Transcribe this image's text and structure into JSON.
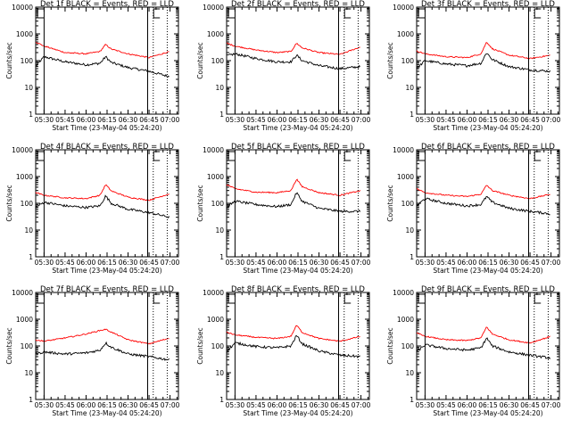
{
  "chart_data": [
    {
      "type": "line",
      "title": "Det 1f BLACK = Events, RED = LLD",
      "xlabel": "Start Time (23-May-04 05:24:20)",
      "ylabel": "Counts/sec",
      "y_scale": "log",
      "ylim": [
        1,
        10000
      ],
      "xtick_labels": [
        "05:30",
        "05:45",
        "06:00",
        "06:15",
        "06:30",
        "06:45",
        "07:00"
      ],
      "ytick_labels": [
        "1",
        "10",
        "100",
        "1000",
        "10000"
      ],
      "markers": {
        "solid": [
          "05:30",
          "06:44"
        ],
        "dotted": [
          "06:48",
          "06:58"
        ],
        "brackets": [
          "05:24",
          "06:47"
        ]
      },
      "series": [
        {
          "color": "#000000",
          "x": [
            "05:24",
            "05:30",
            "05:45",
            "06:00",
            "06:10",
            "06:14",
            "06:18",
            "06:30",
            "06:45",
            "07:00"
          ],
          "y": [
            60,
            140,
            90,
            70,
            80,
            140,
            85,
            55,
            40,
            25
          ]
        },
        {
          "color": "#ff0000",
          "x": [
            "05:24",
            "05:30",
            "05:45",
            "06:00",
            "06:10",
            "06:14",
            "06:18",
            "06:30",
            "06:45",
            "07:00"
          ],
          "y": [
            500,
            350,
            200,
            180,
            220,
            400,
            270,
            180,
            130,
            220
          ]
        }
      ]
    },
    {
      "type": "line",
      "title": "Det 2f BLACK = Events, RED = LLD",
      "xlabel": "Start Time (23-May-04 05:24:20)",
      "ylabel": "Counts/sec",
      "y_scale": "log",
      "ylim": [
        1,
        10000
      ],
      "xtick_labels": [
        "05:30",
        "05:45",
        "06:00",
        "06:15",
        "06:30",
        "06:45",
        "07:00"
      ],
      "ytick_labels": [
        "1",
        "10",
        "100",
        "1000",
        "10000"
      ],
      "markers": {
        "solid": [
          "05:30",
          "06:44"
        ],
        "dotted": [
          "06:48",
          "06:58"
        ],
        "brackets": [
          "05:24",
          "06:47"
        ]
      },
      "series": [
        {
          "color": "#000000",
          "x": [
            "05:24",
            "05:30",
            "05:45",
            "06:00",
            "06:10",
            "06:14",
            "06:18",
            "06:30",
            "06:45",
            "07:00"
          ],
          "y": [
            150,
            180,
            120,
            90,
            90,
            160,
            100,
            65,
            50,
            60
          ]
        },
        {
          "color": "#ff0000",
          "x": [
            "05:24",
            "05:30",
            "05:45",
            "06:00",
            "06:10",
            "06:14",
            "06:18",
            "06:30",
            "06:45",
            "07:00"
          ],
          "y": [
            450,
            350,
            250,
            200,
            220,
            450,
            300,
            200,
            170,
            330
          ]
        }
      ]
    },
    {
      "type": "line",
      "title": "Det 3f BLACK = Events, RED = LLD",
      "xlabel": "Start Time (23-May-04 05:24:20)",
      "ylabel": "Counts/sec",
      "y_scale": "log",
      "ylim": [
        1,
        10000
      ],
      "xtick_labels": [
        "05:30",
        "05:45",
        "06:00",
        "06:15",
        "06:30",
        "06:45",
        "07:00"
      ],
      "ytick_labels": [
        "1",
        "10",
        "100",
        "1000",
        "10000"
      ],
      "markers": {
        "solid": [
          "05:30",
          "06:44"
        ],
        "dotted": [
          "06:48",
          "06:58"
        ],
        "brackets": [
          "05:24",
          "06:47"
        ]
      },
      "series": [
        {
          "color": "#000000",
          "x": [
            "05:24",
            "05:30",
            "05:45",
            "06:00",
            "06:10",
            "06:14",
            "06:18",
            "06:30",
            "06:45",
            "07:00"
          ],
          "y": [
            50,
            100,
            75,
            65,
            80,
            200,
            110,
            60,
            45,
            40
          ]
        },
        {
          "color": "#ff0000",
          "x": [
            "05:24",
            "05:30",
            "05:45",
            "06:00",
            "06:10",
            "06:14",
            "06:18",
            "06:30",
            "06:45",
            "07:00"
          ],
          "y": [
            230,
            180,
            140,
            130,
            180,
            500,
            280,
            160,
            120,
            160
          ]
        }
      ]
    },
    {
      "type": "line",
      "title": "Det 4f BLACK = Events, RED = LLD",
      "xlabel": "Start Time (23-May-04 05:24:20)",
      "ylabel": "Counts/sec",
      "y_scale": "log",
      "ylim": [
        1,
        10000
      ],
      "xtick_labels": [
        "05:30",
        "05:45",
        "06:00",
        "06:15",
        "06:30",
        "06:45",
        "07:00"
      ],
      "ytick_labels": [
        "1",
        "10",
        "100",
        "1000",
        "10000"
      ],
      "markers": {
        "solid": [
          "05:30",
          "06:44"
        ],
        "dotted": [
          "06:48",
          "06:58"
        ],
        "brackets": [
          "05:24",
          "06:47"
        ]
      },
      "series": [
        {
          "color": "#000000",
          "x": [
            "05:24",
            "05:30",
            "05:45",
            "06:00",
            "06:10",
            "06:14",
            "06:18",
            "06:30",
            "06:45",
            "07:00"
          ],
          "y": [
            70,
            110,
            80,
            70,
            80,
            190,
            100,
            60,
            45,
            30
          ]
        },
        {
          "color": "#ff0000",
          "x": [
            "05:24",
            "05:30",
            "05:45",
            "06:00",
            "06:10",
            "06:14",
            "06:18",
            "06:30",
            "06:45",
            "07:00"
          ],
          "y": [
            250,
            200,
            160,
            150,
            200,
            500,
            290,
            170,
            130,
            230
          ]
        }
      ]
    },
    {
      "type": "line",
      "title": "Det 5f BLACK = Events, RED = LLD",
      "xlabel": "Start Time (23-May-04 05:24:20)",
      "ylabel": "Counts/sec",
      "y_scale": "log",
      "ylim": [
        1,
        10000
      ],
      "xtick_labels": [
        "05:30",
        "05:45",
        "06:00",
        "06:15",
        "06:30",
        "06:45",
        "07:00"
      ],
      "ytick_labels": [
        "1",
        "10",
        "100",
        "1000",
        "10000"
      ],
      "markers": {
        "solid": [
          "05:30",
          "06:44"
        ],
        "dotted": [
          "06:48",
          "06:58"
        ],
        "brackets": [
          "05:24",
          "06:47"
        ]
      },
      "series": [
        {
          "color": "#000000",
          "x": [
            "05:24",
            "05:30",
            "05:45",
            "06:00",
            "06:10",
            "06:14",
            "06:18",
            "06:30",
            "06:45",
            "07:00"
          ],
          "y": [
            70,
            120,
            90,
            75,
            90,
            250,
            120,
            65,
            50,
            50
          ]
        },
        {
          "color": "#ff0000",
          "x": [
            "05:24",
            "05:30",
            "05:45",
            "06:00",
            "06:10",
            "06:14",
            "06:18",
            "06:30",
            "06:45",
            "07:00"
          ],
          "y": [
            500,
            350,
            260,
            250,
            300,
            800,
            420,
            250,
            200,
            300
          ]
        }
      ]
    },
    {
      "type": "line",
      "title": "Det 6f BLACK = Events, RED = LLD",
      "xlabel": "Start Time (23-May-04 05:24:20)",
      "ylabel": "Counts/sec",
      "y_scale": "log",
      "ylim": [
        1,
        10000
      ],
      "xtick_labels": [
        "05:30",
        "05:45",
        "06:00",
        "06:15",
        "06:30",
        "06:45",
        "07:00"
      ],
      "ytick_labels": [
        "1",
        "10",
        "100",
        "1000",
        "10000"
      ],
      "markers": {
        "solid": [
          "05:30",
          "06:44"
        ],
        "dotted": [
          "06:48",
          "06:58"
        ],
        "brackets": [
          "05:24",
          "06:47"
        ]
      },
      "series": [
        {
          "color": "#000000",
          "x": [
            "05:24",
            "05:30",
            "05:45",
            "06:00",
            "06:10",
            "06:14",
            "06:18",
            "06:30",
            "06:45",
            "07:00"
          ],
          "y": [
            80,
            150,
            100,
            80,
            90,
            180,
            110,
            65,
            50,
            40
          ]
        },
        {
          "color": "#ff0000",
          "x": [
            "05:24",
            "05:30",
            "05:45",
            "06:00",
            "06:10",
            "06:14",
            "06:18",
            "06:30",
            "06:45",
            "07:00"
          ],
          "y": [
            350,
            250,
            200,
            180,
            220,
            480,
            300,
            200,
            150,
            220
          ]
        }
      ]
    },
    {
      "type": "line",
      "title": "Det 7f BLACK = Events, RED = LLD",
      "xlabel": "Start Time (23-May-04 05:24:20)",
      "ylabel": "Counts/sec",
      "y_scale": "log",
      "ylim": [
        1,
        10000
      ],
      "xtick_labels": [
        "05:30",
        "05:45",
        "06:00",
        "06:15",
        "06:30",
        "06:45",
        "07:00"
      ],
      "ytick_labels": [
        "1",
        "10",
        "100",
        "1000",
        "10000"
      ],
      "markers": {
        "solid": [
          "05:30",
          "06:44"
        ],
        "dotted": [
          "06:48",
          "06:58"
        ],
        "brackets": [
          "05:24",
          "06:47"
        ]
      },
      "series": [
        {
          "color": "#000000",
          "x": [
            "05:24",
            "05:30",
            "05:45",
            "06:00",
            "06:10",
            "06:14",
            "06:18",
            "06:30",
            "06:45",
            "07:00"
          ],
          "y": [
            50,
            60,
            50,
            55,
            70,
            130,
            90,
            50,
            40,
            30
          ]
        },
        {
          "color": "#ff0000",
          "x": [
            "05:24",
            "05:30",
            "05:45",
            "06:00",
            "06:10",
            "06:14",
            "06:18",
            "06:30",
            "06:45",
            "07:00"
          ],
          "y": [
            170,
            150,
            200,
            280,
            380,
            420,
            330,
            170,
            120,
            200
          ]
        }
      ]
    },
    {
      "type": "line",
      "title": "Det 8f BLACK = Events, RED = LLD",
      "xlabel": "Start Time (23-May-04 05:24:20)",
      "ylabel": "Counts/sec",
      "y_scale": "log",
      "ylim": [
        1,
        10000
      ],
      "xtick_labels": [
        "05:30",
        "05:45",
        "06:00",
        "06:15",
        "06:30",
        "06:45",
        "07:00"
      ],
      "ytick_labels": [
        "1",
        "10",
        "100",
        "1000",
        "10000"
      ],
      "markers": {
        "solid": [
          "05:30",
          "06:44"
        ],
        "dotted": [
          "06:48",
          "06:58"
        ],
        "brackets": [
          "05:24",
          "06:47"
        ]
      },
      "series": [
        {
          "color": "#000000",
          "x": [
            "05:24",
            "05:30",
            "05:45",
            "06:00",
            "06:10",
            "06:14",
            "06:18",
            "06:30",
            "06:45",
            "07:00"
          ],
          "y": [
            60,
            130,
            95,
            85,
            100,
            250,
            120,
            65,
            45,
            40
          ]
        },
        {
          "color": "#ff0000",
          "x": [
            "05:24",
            "05:30",
            "05:45",
            "06:00",
            "06:10",
            "06:14",
            "06:18",
            "06:30",
            "06:45",
            "07:00"
          ],
          "y": [
            330,
            260,
            210,
            190,
            230,
            600,
            320,
            190,
            150,
            230
          ]
        }
      ]
    },
    {
      "type": "line",
      "title": "Det 9f BLACK = Events, RED = LLD",
      "xlabel": "Start Time (23-May-04 05:24:20)",
      "ylabel": "Counts/sec",
      "y_scale": "log",
      "ylim": [
        1,
        10000
      ],
      "xtick_labels": [
        "05:30",
        "05:45",
        "06:00",
        "06:15",
        "06:30",
        "06:45",
        "07:00"
      ],
      "ytick_labels": [
        "1",
        "10",
        "100",
        "1000",
        "10000"
      ],
      "markers": {
        "solid": [
          "05:30",
          "06:44"
        ],
        "dotted": [
          "06:48",
          "06:58"
        ],
        "brackets": [
          "05:24",
          "06:47"
        ]
      },
      "series": [
        {
          "color": "#000000",
          "x": [
            "05:24",
            "05:30",
            "05:45",
            "06:00",
            "06:10",
            "06:14",
            "06:18",
            "06:30",
            "06:45",
            "07:00"
          ],
          "y": [
            60,
            110,
            80,
            70,
            85,
            200,
            100,
            60,
            45,
            35
          ]
        },
        {
          "color": "#ff0000",
          "x": [
            "05:24",
            "05:30",
            "05:45",
            "06:00",
            "06:10",
            "06:14",
            "06:18",
            "06:30",
            "06:45",
            "07:00"
          ],
          "y": [
            300,
            230,
            170,
            160,
            200,
            520,
            280,
            170,
            130,
            230
          ]
        }
      ]
    }
  ]
}
